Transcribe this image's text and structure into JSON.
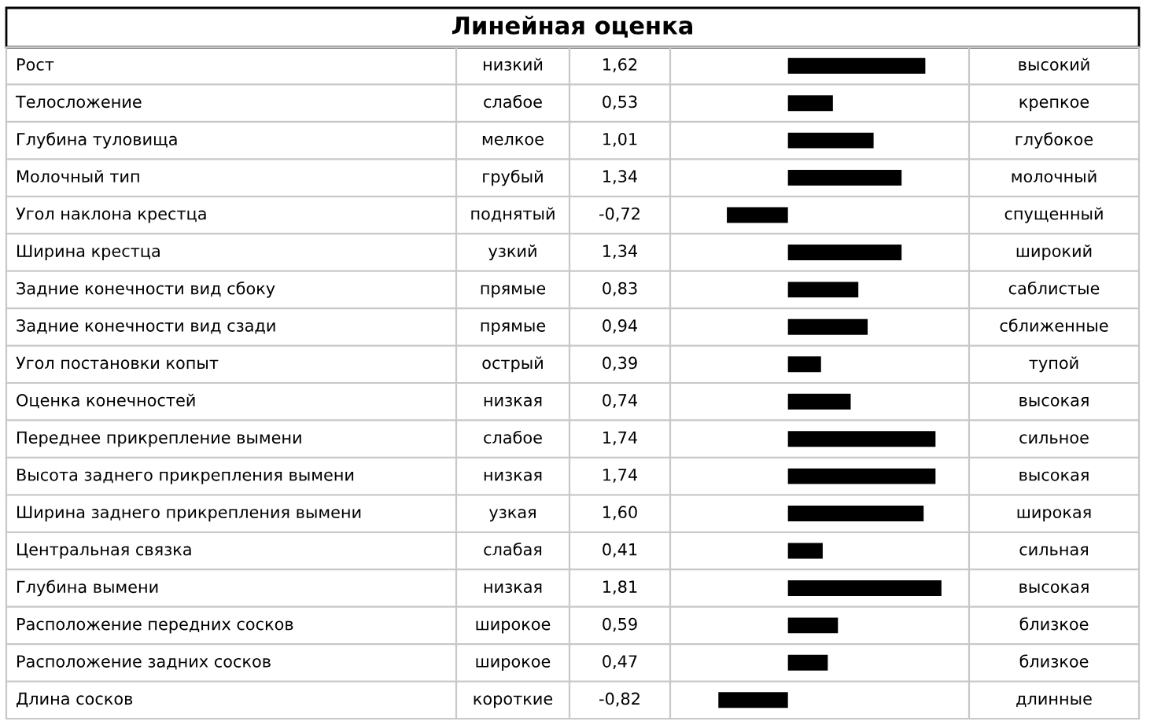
{
  "chart_data": {
    "type": "bar",
    "orientation": "horizontal",
    "title": "Линейная оценка",
    "categories": [
      "Рост",
      "Телосложение",
      "Глубина туловища",
      "Молочный тип",
      "Угол наклона крестца",
      "Ширина крестца",
      "Задние конечности вид сбоку",
      "Задние конечности вид сзади",
      "Угол постановки копыт",
      "Оценка конечностей",
      "Переднее прикрепление вымени",
      "Высота заднего прикрепления вымени",
      "Ширина заднего прикрепления вымени",
      "Центральная связка",
      "Глубина вымени",
      "Расположение передних сосков",
      "Расположение задних сосков",
      "Длина сосков"
    ],
    "values": [
      1.62,
      0.53,
      1.01,
      1.34,
      -0.72,
      1.34,
      0.83,
      0.94,
      0.39,
      0.74,
      1.74,
      1.74,
      1.6,
      0.41,
      1.81,
      0.59,
      0.47,
      -0.82
    ],
    "value_labels": [
      "1,62",
      "0,53",
      "1,01",
      "1,34",
      "-0,72",
      "1,34",
      "0,83",
      "0,94",
      "0,39",
      "0,74",
      "1,74",
      "1,74",
      "1,60",
      "0,41",
      "1,81",
      "0,59",
      "0,47",
      "-0,82"
    ],
    "color": "#000000",
    "annotations": [
      "низкий",
      "высокий",
      "слабое",
      "крепкое",
      "мелкое",
      "глубокое",
      "грубый",
      "молочный",
      "поднятый",
      "спущенный",
      "узкий",
      "широкий",
      "прямые",
      "саблистые",
      "прямые",
      "сближенные",
      "острый",
      "тупой",
      "низкая",
      "высокая",
      "слабое",
      "сильное",
      "низкая",
      "высокая",
      "узкая",
      "широкая",
      "слабая",
      "сильная",
      "низкая",
      "высокая",
      "широкое",
      "близкое",
      "широкое",
      "близкое",
      "короткие",
      "длинные"
    ]
  }
}
